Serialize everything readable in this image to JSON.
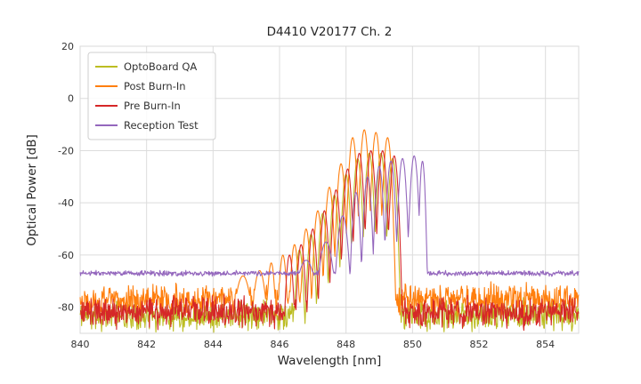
{
  "chart_data": {
    "type": "line",
    "title": "D4410 V20177 Ch. 2",
    "xlabel": "Wavelength [nm]",
    "ylabel": "Optical Power [dB]",
    "xlim": [
      840,
      855
    ],
    "ylim": [
      -90,
      20
    ],
    "xticks": [
      840,
      842,
      844,
      846,
      848,
      850,
      852,
      854
    ],
    "yticks": [
      20,
      0,
      -20,
      -40,
      -60,
      -80
    ],
    "grid": true,
    "grid_color": "#dcdcdc",
    "legend_position": "upper-left",
    "sample_step_nm": 0.015,
    "mode_valley_drop_db": 30,
    "series": [
      {
        "name": "OptoBoard QA",
        "color": "#bcbd22",
        "noise_floor_db": -83,
        "noise_amplitude_db": 7,
        "seed": 11,
        "peak_width_nm": 0.17,
        "peaks": [
          {
            "x": 846.6,
            "y": -58
          },
          {
            "x": 846.95,
            "y": -52
          },
          {
            "x": 847.3,
            "y": -44
          },
          {
            "x": 847.65,
            "y": -37
          },
          {
            "x": 848.0,
            "y": -29
          },
          {
            "x": 848.35,
            "y": -23
          },
          {
            "x": 848.7,
            "y": -21
          },
          {
            "x": 849.05,
            "y": -21
          },
          {
            "x": 849.4,
            "y": -23
          }
        ]
      },
      {
        "name": "Post Burn-In",
        "color": "#ff7f0e",
        "noise_floor_db": -77,
        "noise_amplitude_db": 7,
        "seed": 22,
        "peak_width_nm": 0.17,
        "peaks": [
          {
            "x": 844.9,
            "y": -68,
            "w": 0.4
          },
          {
            "x": 845.4,
            "y": -66,
            "w": 0.3
          },
          {
            "x": 845.75,
            "y": -63
          },
          {
            "x": 846.1,
            "y": -60
          },
          {
            "x": 846.45,
            "y": -56
          },
          {
            "x": 846.8,
            "y": -50
          },
          {
            "x": 847.15,
            "y": -43
          },
          {
            "x": 847.5,
            "y": -34
          },
          {
            "x": 847.85,
            "y": -25
          },
          {
            "x": 848.2,
            "y": -15
          },
          {
            "x": 848.55,
            "y": -12
          },
          {
            "x": 848.9,
            "y": -13
          },
          {
            "x": 849.25,
            "y": -15
          }
        ]
      },
      {
        "name": "Pre Burn-In",
        "color": "#d62728",
        "noise_floor_db": -82,
        "noise_amplitude_db": 7,
        "seed": 33,
        "peak_width_nm": 0.17,
        "peaks": [
          {
            "x": 846.3,
            "y": -60
          },
          {
            "x": 846.65,
            "y": -56
          },
          {
            "x": 847.0,
            "y": -50
          },
          {
            "x": 847.35,
            "y": -43
          },
          {
            "x": 847.7,
            "y": -35
          },
          {
            "x": 848.05,
            "y": -27
          },
          {
            "x": 848.4,
            "y": -21
          },
          {
            "x": 848.75,
            "y": -20
          },
          {
            "x": 849.1,
            "y": -20
          },
          {
            "x": 849.45,
            "y": -22
          }
        ]
      },
      {
        "name": "Reception Test",
        "color": "#9467bd",
        "noise_floor_db": -67,
        "noise_amplitude_db": 1.2,
        "seed": 44,
        "peak_width_nm": 0.17,
        "peaks": [
          {
            "x": 846.8,
            "y": -62,
            "w": 0.5
          },
          {
            "x": 847.4,
            "y": -55,
            "w": 0.35
          },
          {
            "x": 847.9,
            "y": -45,
            "w": 0.25
          },
          {
            "x": 848.3,
            "y": -36
          },
          {
            "x": 848.65,
            "y": -30
          },
          {
            "x": 849.0,
            "y": -26
          },
          {
            "x": 849.35,
            "y": -24
          },
          {
            "x": 849.7,
            "y": -23
          },
          {
            "x": 850.05,
            "y": -22
          },
          {
            "x": 850.3,
            "y": -24,
            "w": 0.12
          }
        ]
      }
    ]
  }
}
